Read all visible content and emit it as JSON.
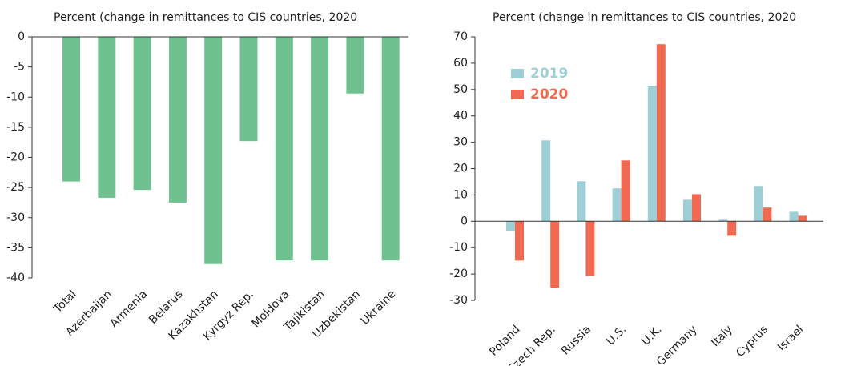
{
  "chart_data": [
    {
      "type": "bar",
      "title": "Percent (change in remittances to CIS countries, 2020",
      "categories": [
        "Total",
        "Azerbaijan",
        "Armenia",
        "Belarus",
        "Kazakhstan",
        "Kyrgyz Rep.",
        "Moldova",
        "Tajikistan",
        "Uzbekistan",
        "Ukraine"
      ],
      "values": [
        -24,
        -26.7,
        -25.4,
        -27.5,
        -37.7,
        -17.3,
        -37.1,
        -37.1,
        -9.4,
        -37.1
      ],
      "color": "#6fc190",
      "ylim": [
        -40,
        0
      ],
      "yticks": [
        0,
        -5,
        -10,
        -15,
        -20,
        -25,
        -30,
        -35,
        -40
      ]
    },
    {
      "type": "grouped-bar",
      "title": "Percent (change in remittances to CIS countries, 2020",
      "categories": [
        "Poland",
        "Czech Rep.",
        "Russia",
        "U.S.",
        "U.K.",
        "Germany",
        "Italy",
        "Cyprus",
        "Israel"
      ],
      "series": [
        {
          "name": "2019",
          "color": "#9ecfd6",
          "values": [
            -3.6,
            30.7,
            15.2,
            12.5,
            51.4,
            8.2,
            0.6,
            13.4,
            3.6
          ]
        },
        {
          "name": "2020",
          "color": "#ef6a50",
          "values": [
            -14.9,
            -25.2,
            -20.7,
            23.1,
            67.2,
            10.3,
            -5.5,
            5.2,
            2.1
          ]
        }
      ],
      "ylim": [
        -30,
        70
      ],
      "yticks": [
        70,
        60,
        50,
        40,
        30,
        20,
        10,
        0,
        -10,
        -20,
        -30
      ],
      "legend": "upper left"
    }
  ]
}
